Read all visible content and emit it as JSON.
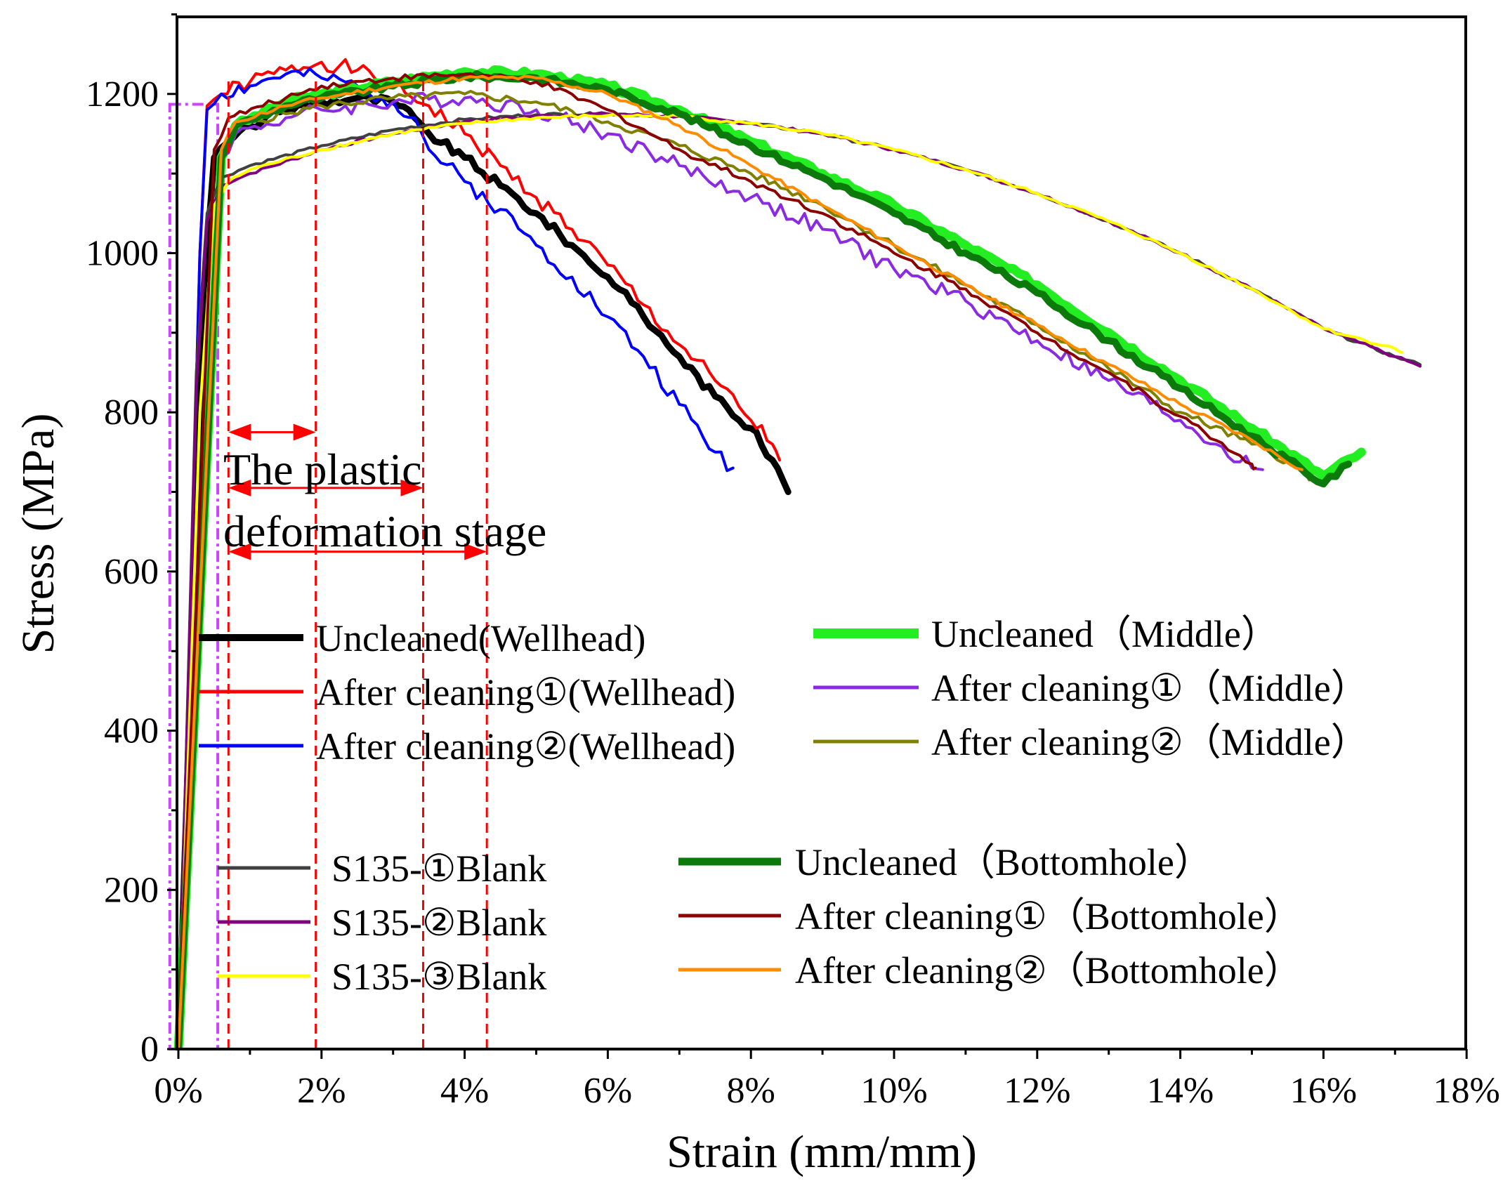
{
  "chart_data": {
    "type": "line",
    "xlabel": "Strain (mm/mm)",
    "ylabel": "Stress (MPa)",
    "xlim": [
      0,
      0.18
    ],
    "ylim": [
      0,
      1300
    ],
    "x_ticks": [
      0,
      0.02,
      0.04,
      0.06,
      0.08,
      0.1,
      0.12,
      0.14,
      0.16,
      0.18
    ],
    "x_tick_labels": [
      "0%",
      "2%",
      "4%",
      "6%",
      "8%",
      "10%",
      "12%",
      "14%",
      "16%",
      "18%"
    ],
    "y_ticks": [
      0,
      200,
      400,
      600,
      800,
      1000,
      1200
    ],
    "y_tick_labels": [
      "0",
      "200",
      "400",
      "600",
      "800",
      "1000",
      "1200"
    ],
    "grid": false,
    "annotation": {
      "text_line1": "The plastic",
      "text_line2": "deformation stage",
      "color": "#ff0000",
      "yield_strain": 0.007,
      "markers_strain": [
        0.0192,
        0.0342,
        0.0431
      ],
      "arrows": [
        {
          "from": 0.007,
          "to": 0.0192,
          "stress": 775
        },
        {
          "from": 0.007,
          "to": 0.0342,
          "stress": 705
        },
        {
          "from": 0.007,
          "to": 0.0431,
          "stress": 625
        }
      ]
    },
    "elastic_box": {
      "x0": -0.0012,
      "x1": 0.0055,
      "y0": 0,
      "y1": 1187,
      "color": "#cc44ff"
    },
    "series": [
      {
        "name": "Uncleaned(Wellhead)",
        "color": "#000000",
        "width": 9,
        "jitter": 6,
        "x": [
          0,
          0.0035,
          0.005,
          0.007,
          0.01,
          0.015,
          0.02,
          0.025,
          0.03,
          0.033,
          0.035,
          0.04,
          0.045,
          0.05,
          0.055,
          0.06,
          0.065,
          0.07,
          0.075,
          0.08,
          0.083,
          0.0852
        ],
        "y": [
          0,
          950,
          1120,
          1140,
          1160,
          1180,
          1190,
          1195,
          1190,
          1170,
          1150,
          1120,
          1085,
          1050,
          1010,
          970,
          920,
          870,
          820,
          780,
          740,
          700
        ]
      },
      {
        "name": "After cleaning①(Wellhead)",
        "color": "#ff0000",
        "width": 4,
        "jitter": 10,
        "x": [
          0,
          0.003,
          0.004,
          0.006,
          0.01,
          0.015,
          0.02,
          0.025,
          0.03,
          0.035,
          0.04,
          0.045,
          0.05,
          0.055,
          0.06,
          0.065,
          0.07,
          0.075,
          0.08,
          0.083,
          0.084
        ],
        "y": [
          0,
          1000,
          1185,
          1200,
          1215,
          1230,
          1240,
          1230,
          1210,
          1185,
          1150,
          1110,
          1070,
          1030,
          985,
          935,
          885,
          840,
          790,
          760,
          740
        ]
      },
      {
        "name": "After cleaning②(Wellhead)",
        "color": "#0000ff",
        "width": 4,
        "jitter": 10,
        "x": [
          0,
          0.003,
          0.004,
          0.006,
          0.01,
          0.015,
          0.02,
          0.025,
          0.03,
          0.033,
          0.035,
          0.04,
          0.045,
          0.05,
          0.055,
          0.06,
          0.065,
          0.07,
          0.075,
          0.0775
        ],
        "y": [
          0,
          1000,
          1180,
          1200,
          1210,
          1225,
          1220,
          1210,
          1190,
          1170,
          1130,
          1090,
          1055,
          1010,
          970,
          920,
          870,
          810,
          750,
          730
        ]
      },
      {
        "name": "Uncleaned（Middle）",
        "color": "#22ee22",
        "width": 13,
        "jitter": 4,
        "x": [
          0,
          0.006,
          0.008,
          0.015,
          0.02,
          0.03,
          0.04,
          0.05,
          0.06,
          0.07,
          0.08,
          0.09,
          0.1,
          0.11,
          0.12,
          0.13,
          0.14,
          0.15,
          0.16,
          0.1653
        ],
        "y": [
          0,
          1120,
          1160,
          1190,
          1200,
          1215,
          1228,
          1225,
          1210,
          1180,
          1140,
          1100,
          1060,
          1010,
          960,
          900,
          840,
          780,
          720,
          750
        ]
      },
      {
        "name": "After cleaning①（Middle）",
        "color": "#8a2be2",
        "width": 4,
        "jitter": 10,
        "x": [
          0,
          0.006,
          0.008,
          0.015,
          0.02,
          0.03,
          0.04,
          0.05,
          0.06,
          0.07,
          0.08,
          0.09,
          0.1,
          0.11,
          0.12,
          0.13,
          0.14,
          0.145,
          0.15,
          0.1515
        ],
        "y": [
          0,
          1120,
          1150,
          1170,
          1180,
          1190,
          1195,
          1180,
          1150,
          1110,
          1070,
          1030,
          980,
          940,
          890,
          840,
          790,
          760,
          730,
          728
        ]
      },
      {
        "name": "After cleaning②（Middle）",
        "color": "#808000",
        "width": 4,
        "jitter": 5,
        "x": [
          0,
          0.006,
          0.008,
          0.015,
          0.02,
          0.03,
          0.04,
          0.05,
          0.06,
          0.07,
          0.08,
          0.09,
          0.1,
          0.11,
          0.12,
          0.13,
          0.14,
          0.15,
          0.157,
          0.158
        ],
        "y": [
          0,
          1130,
          1160,
          1175,
          1185,
          1195,
          1200,
          1190,
          1165,
          1135,
          1100,
          1060,
          1010,
          960,
          910,
          855,
          800,
          760,
          730,
          715
        ]
      },
      {
        "name": "S135-①Blank",
        "color": "#404040",
        "width": 4,
        "jitter": 2,
        "x": [
          0,
          0.0025,
          0.004,
          0.006,
          0.01,
          0.02,
          0.03,
          0.04,
          0.05,
          0.06,
          0.07,
          0.08,
          0.09,
          0.1,
          0.11,
          0.12,
          0.13,
          0.14,
          0.15,
          0.16,
          0.17,
          0.1735
        ],
        "y": [
          0,
          850,
          1050,
          1095,
          1110,
          1135,
          1155,
          1168,
          1174,
          1175,
          1172,
          1163,
          1150,
          1130,
          1105,
          1075,
          1040,
          1000,
          955,
          905,
          870,
          860
        ]
      },
      {
        "name": "S135-②Blank",
        "color": "#800080",
        "width": 4,
        "jitter": 2,
        "x": [
          0,
          0.0025,
          0.004,
          0.006,
          0.01,
          0.02,
          0.03,
          0.04,
          0.05,
          0.06,
          0.07,
          0.08,
          0.09,
          0.1,
          0.11,
          0.12,
          0.13,
          0.14,
          0.15,
          0.16,
          0.17,
          0.1735
        ],
        "y": [
          0,
          830,
          1040,
          1085,
          1100,
          1130,
          1150,
          1165,
          1172,
          1175,
          1172,
          1163,
          1150,
          1130,
          1105,
          1075,
          1040,
          1000,
          955,
          905,
          870,
          858
        ]
      },
      {
        "name": "S135-③Blank",
        "color": "#ffff00",
        "width": 4,
        "jitter": 2,
        "x": [
          0,
          0.003,
          0.005,
          0.007,
          0.01,
          0.02,
          0.03,
          0.04,
          0.05,
          0.06,
          0.07,
          0.08,
          0.09,
          0.1,
          0.11,
          0.12,
          0.13,
          0.14,
          0.15,
          0.16,
          0.17,
          0.171
        ],
        "y": [
          0,
          800,
          1060,
          1090,
          1105,
          1130,
          1150,
          1163,
          1170,
          1173,
          1172,
          1163,
          1150,
          1130,
          1105,
          1075,
          1040,
          1000,
          955,
          905,
          880,
          875
        ]
      },
      {
        "name": "Uncleaned（Bottomhole）",
        "color": "#0b7a0b",
        "width": 10,
        "jitter": 4,
        "x": [
          0,
          0.006,
          0.008,
          0.015,
          0.02,
          0.03,
          0.04,
          0.05,
          0.06,
          0.07,
          0.08,
          0.09,
          0.1,
          0.11,
          0.12,
          0.13,
          0.14,
          0.15,
          0.16,
          0.1635
        ],
        "y": [
          0,
          1120,
          1160,
          1185,
          1195,
          1210,
          1222,
          1220,
          1205,
          1175,
          1135,
          1095,
          1050,
          1000,
          950,
          890,
          830,
          770,
          710,
          735
        ]
      },
      {
        "name": "After cleaning①（Bottomhole）",
        "color": "#8b0000",
        "width": 4,
        "jitter": 4,
        "x": [
          0,
          0.005,
          0.007,
          0.015,
          0.02,
          0.03,
          0.04,
          0.05,
          0.06,
          0.07,
          0.08,
          0.09,
          0.1,
          0.11,
          0.12,
          0.13,
          0.14,
          0.15,
          0.1505
        ],
        "y": [
          0,
          1130,
          1170,
          1195,
          1210,
          1220,
          1225,
          1215,
          1180,
          1130,
          1090,
          1050,
          1000,
          955,
          900,
          850,
          795,
          735,
          730
        ]
      },
      {
        "name": "After cleaning②（Bottomhole）",
        "color": "#ff8c00",
        "width": 4,
        "jitter": 3,
        "x": [
          0,
          0.006,
          0.008,
          0.015,
          0.02,
          0.03,
          0.04,
          0.05,
          0.06,
          0.07,
          0.08,
          0.09,
          0.1,
          0.11,
          0.12,
          0.13,
          0.14,
          0.15,
          0.157
        ],
        "y": [
          0,
          1130,
          1165,
          1185,
          1195,
          1210,
          1220,
          1220,
          1200,
          1160,
          1110,
          1060,
          1010,
          960,
          910,
          860,
          810,
          765,
          728
        ]
      }
    ],
    "legend_groups": [
      [
        "Uncleaned(Wellhead)",
        "After cleaning①(Wellhead)",
        "After cleaning②(Wellhead)"
      ],
      [
        "Uncleaned（Middle）",
        "After cleaning①（Middle）",
        "After cleaning②（Middle）"
      ],
      [
        "S135-①Blank",
        "S135-②Blank",
        "S135-③Blank"
      ],
      [
        "Uncleaned（Bottomhole）",
        "After cleaning①（Bottomhole）",
        "After cleaning②（Bottomhole）"
      ]
    ]
  }
}
